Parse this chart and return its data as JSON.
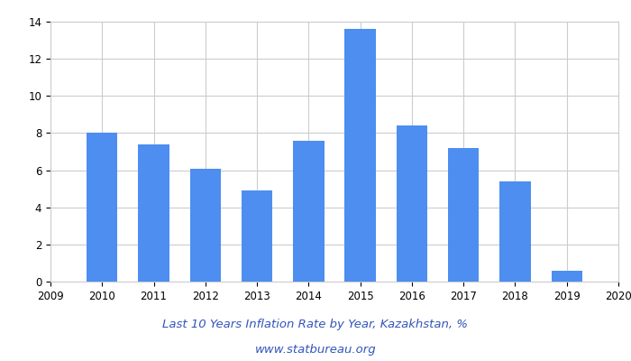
{
  "bar_years": [
    2010,
    2011,
    2012,
    2013,
    2014,
    2015,
    2016,
    2017,
    2018,
    2019
  ],
  "values": [
    8.0,
    7.4,
    6.1,
    4.9,
    7.6,
    13.6,
    8.4,
    7.2,
    5.4,
    0.6
  ],
  "bar_color": "#4d8ef0",
  "title_line1": "Last 10 Years Inflation Rate by Year, Kazakhstan, %",
  "title_line2": "www.statbureau.org",
  "title_fontsize": 9.5,
  "url_fontsize": 9.5,
  "title_color": "#3355bb",
  "xlim": [
    2009,
    2020
  ],
  "ylim": [
    0,
    14
  ],
  "yticks": [
    0,
    2,
    4,
    6,
    8,
    10,
    12,
    14
  ],
  "xticks": [
    2009,
    2010,
    2011,
    2012,
    2013,
    2014,
    2015,
    2016,
    2017,
    2018,
    2019,
    2020
  ],
  "background_color": "#ffffff",
  "grid_color": "#cccccc",
  "bar_width": 0.6
}
